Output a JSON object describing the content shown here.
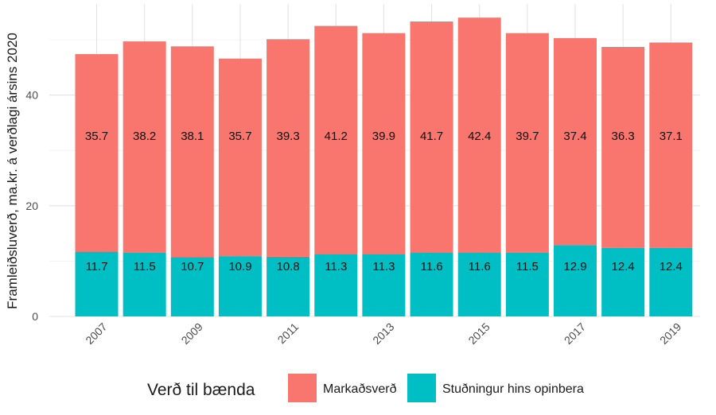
{
  "chart_data": {
    "type": "bar",
    "stacked": true,
    "title": "",
    "xlabel": "",
    "ylabel": "Framleiðsluverð, ma.kr. á verðlagi ársins 2020",
    "categories": [
      "2007",
      "2008",
      "2009",
      "2010",
      "2011",
      "2012",
      "2013",
      "2014",
      "2015",
      "2016",
      "2017",
      "2018",
      "2019"
    ],
    "x_tick_labels": [
      "2007",
      "2009",
      "2011",
      "2013",
      "2015",
      "2017",
      "2019"
    ],
    "y_ticks": [
      0,
      20,
      40
    ],
    "ylim": [
      0,
      56
    ],
    "grid": true,
    "legend": {
      "title": "Verð til bænda",
      "placement": "bottom"
    },
    "series": [
      {
        "name": "Stuðningur hins opinbera",
        "color": "#00bfc4",
        "values": [
          11.7,
          11.5,
          10.7,
          10.9,
          10.8,
          11.3,
          11.3,
          11.6,
          11.6,
          11.5,
          12.9,
          12.4,
          12.4
        ],
        "labels": [
          "11.7",
          "11.5",
          "10.7",
          "10.9",
          "10.8",
          "11.3",
          "11.3",
          "11.6",
          "11.6",
          "11.5",
          "12.9",
          "12.4",
          "12.4"
        ]
      },
      {
        "name": "Markaðsverð",
        "color": "#f8766d",
        "values": [
          35.7,
          38.2,
          38.1,
          35.7,
          39.3,
          41.2,
          39.9,
          41.7,
          42.4,
          39.7,
          37.4,
          36.3,
          37.1
        ],
        "labels": [
          "35.7",
          "38.2",
          "38.1",
          "35.7",
          "39.3",
          "41.2",
          "39.9",
          "41.7",
          "42.4",
          "39.7",
          "37.4",
          "36.3",
          "37.1"
        ]
      }
    ],
    "legend_order": [
      "Markaðsverð",
      "Stuðningur hins opinbera"
    ]
  }
}
